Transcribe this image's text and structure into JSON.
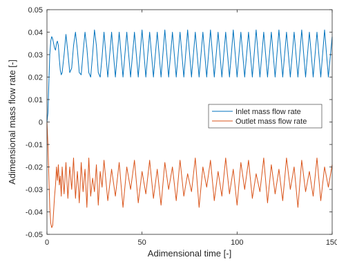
{
  "chart_data": {
    "type": "line",
    "title": "",
    "xlabel": "Adimensional time [-]",
    "ylabel": "Adimensional mass flow rate [-]",
    "xlim": [
      0,
      150
    ],
    "ylim": [
      -0.05,
      0.05
    ],
    "x_ticks": [
      0,
      50,
      100,
      150
    ],
    "y_ticks": [
      -0.05,
      -0.04,
      -0.03,
      -0.02,
      -0.01,
      0,
      0.01,
      0.02,
      0.03,
      0.04,
      0.05
    ],
    "x_tick_labels": [
      "0",
      "50",
      "100",
      "150"
    ],
    "y_tick_labels": [
      "-0.05",
      "-0.04",
      "-0.03",
      "-0.02",
      "-0.01",
      "0",
      "0.01",
      "0.02",
      "0.03",
      "0.04",
      "0.05"
    ],
    "grid": false,
    "legend_position": "center-right",
    "series": [
      {
        "name": "Inlet mass flow rate",
        "color": "#0072BD",
        "x": [
          0,
          0.5,
          1,
          1.5,
          2,
          2.5,
          3,
          3.5,
          4,
          4.5,
          5,
          5.5,
          6,
          6.5,
          7,
          7.5,
          8,
          9,
          10,
          11,
          12,
          13,
          14,
          15,
          16,
          17,
          18,
          19,
          20,
          21,
          22,
          23,
          24,
          25,
          26,
          27,
          28,
          29,
          30,
          32,
          34,
          36,
          38,
          40,
          42,
          44,
          46,
          48,
          50,
          52,
          54,
          56,
          58,
          60,
          62,
          64,
          66,
          68,
          70,
          72,
          74,
          76,
          78,
          80,
          82,
          84,
          86,
          88,
          90,
          92,
          94,
          96,
          98,
          100,
          102,
          104,
          106,
          108,
          110,
          112,
          114,
          116,
          118,
          120,
          122,
          124,
          126,
          128,
          130,
          132,
          134,
          136,
          138,
          140,
          142,
          144,
          146,
          148,
          150
        ],
        "values": [
          0.0,
          0.004,
          0.018,
          0.03,
          0.036,
          0.038,
          0.037,
          0.035,
          0.033,
          0.032,
          0.035,
          0.036,
          0.034,
          0.028,
          0.023,
          0.021,
          0.022,
          0.03,
          0.039,
          0.031,
          0.022,
          0.024,
          0.034,
          0.04,
          0.032,
          0.022,
          0.021,
          0.031,
          0.04,
          0.033,
          0.022,
          0.02,
          0.03,
          0.041,
          0.034,
          0.022,
          0.02,
          0.029,
          0.04,
          0.02,
          0.04,
          0.02,
          0.04,
          0.02,
          0.04,
          0.02,
          0.04,
          0.02,
          0.041,
          0.02,
          0.04,
          0.02,
          0.04,
          0.02,
          0.041,
          0.02,
          0.04,
          0.02,
          0.04,
          0.02,
          0.041,
          0.02,
          0.04,
          0.02,
          0.04,
          0.02,
          0.041,
          0.02,
          0.04,
          0.02,
          0.04,
          0.02,
          0.041,
          0.02,
          0.04,
          0.02,
          0.04,
          0.02,
          0.041,
          0.02,
          0.04,
          0.02,
          0.04,
          0.02,
          0.041,
          0.02,
          0.04,
          0.02,
          0.04,
          0.02,
          0.041,
          0.02,
          0.04,
          0.02,
          0.04,
          0.02,
          0.041,
          0.02,
          0.038
        ]
      },
      {
        "name": "Outlet mass flow rate",
        "color": "#D95319",
        "x": [
          0,
          0.5,
          1,
          1.5,
          2,
          2.5,
          3,
          3.5,
          4,
          4.5,
          5,
          5.5,
          6,
          6.5,
          7,
          7.5,
          8,
          9,
          10,
          11,
          12,
          13,
          14,
          15,
          16,
          17,
          18,
          19,
          20,
          21,
          22,
          23,
          24,
          25,
          26,
          27,
          28,
          29,
          30,
          32,
          34,
          36,
          38,
          40,
          42,
          44,
          46,
          48,
          50,
          52,
          54,
          56,
          58,
          60,
          62,
          64,
          66,
          68,
          70,
          72,
          74,
          76,
          78,
          80,
          82,
          84,
          86,
          88,
          90,
          92,
          94,
          96,
          98,
          100,
          102,
          104,
          106,
          108,
          110,
          112,
          114,
          116,
          118,
          120,
          122,
          124,
          126,
          128,
          130,
          132,
          134,
          136,
          138,
          140,
          142,
          144,
          146,
          148,
          150
        ],
        "values": [
          0.0,
          -0.01,
          -0.025,
          -0.038,
          -0.045,
          -0.047,
          -0.046,
          -0.04,
          -0.033,
          -0.028,
          -0.02,
          -0.026,
          -0.019,
          -0.028,
          -0.024,
          -0.033,
          -0.02,
          -0.032,
          -0.018,
          -0.034,
          -0.02,
          -0.03,
          -0.016,
          -0.034,
          -0.022,
          -0.036,
          -0.018,
          -0.031,
          -0.021,
          -0.038,
          -0.016,
          -0.033,
          -0.025,
          -0.031,
          -0.019,
          -0.037,
          -0.022,
          -0.029,
          -0.017,
          -0.035,
          -0.021,
          -0.033,
          -0.018,
          -0.038,
          -0.02,
          -0.03,
          -0.017,
          -0.036,
          -0.022,
          -0.032,
          -0.017,
          -0.034,
          -0.021,
          -0.037,
          -0.018,
          -0.03,
          -0.02,
          -0.035,
          -0.017,
          -0.033,
          -0.023,
          -0.031,
          -0.016,
          -0.038,
          -0.02,
          -0.029,
          -0.017,
          -0.035,
          -0.022,
          -0.033,
          -0.016,
          -0.032,
          -0.021,
          -0.037,
          -0.018,
          -0.03,
          -0.017,
          -0.034,
          -0.023,
          -0.031,
          -0.016,
          -0.036,
          -0.019,
          -0.032,
          -0.021,
          -0.035,
          -0.016,
          -0.03,
          -0.02,
          -0.038,
          -0.017,
          -0.031,
          -0.022,
          -0.033,
          -0.016,
          -0.035,
          -0.02,
          -0.029,
          -0.019
        ]
      }
    ]
  }
}
